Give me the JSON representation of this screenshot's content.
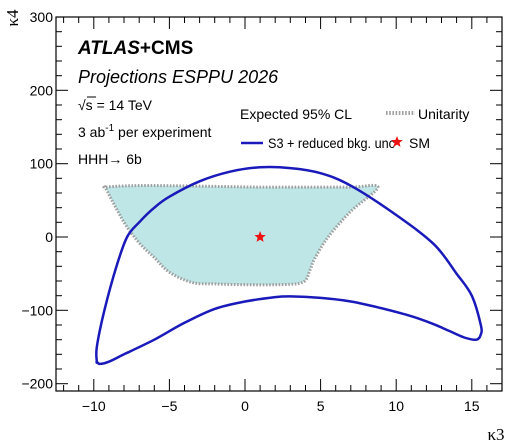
{
  "chart_data": {
    "type": "contour",
    "xlabel": "κ3",
    "ylabel": "κ4",
    "xlim": [
      -12.5,
      17
    ],
    "ylim": [
      -210,
      300
    ],
    "x_ticks": [
      -10,
      -5,
      0,
      5,
      10,
      15
    ],
    "y_ticks": [
      -200,
      -100,
      0,
      100,
      200,
      300
    ],
    "annotations": {
      "experiment_bold_italic": "ATLAS",
      "experiment_bold": "+CMS",
      "subtitle": "Projections ESPPU 2026",
      "energy_sqrt": "√s",
      "energy_value": "= 14 TeV",
      "lumi_value": "3 ab",
      "lumi_exp": "-1",
      "lumi_suffix": " per experiment",
      "channel_label": "HHH",
      "channel_arrow": "→",
      "channel_final": " 6b",
      "cl_label": "Expected 95% CL"
    },
    "legend": {
      "placement": "top-right",
      "entries": [
        {
          "label": "Unitarity",
          "style": "dotted-fill",
          "color": "#a0a0a0"
        },
        {
          "label": "S3 + reduced bkg. unc",
          "style": "line",
          "color": "#1a1aba"
        },
        {
          "label": "SM",
          "style": "star-marker",
          "color": "#ee1111"
        }
      ]
    },
    "series": [
      {
        "name": "Unitarity",
        "kind": "filled_region",
        "fill_color": "#bfe6e6",
        "edge_color": "#a0a0a0",
        "points": [
          [
            -9.2,
            68
          ],
          [
            -7.5,
            70
          ],
          [
            -5,
            70
          ],
          [
            -2,
            69
          ],
          [
            1,
            68
          ],
          [
            4,
            68
          ],
          [
            7,
            68
          ],
          [
            8.8,
            68
          ],
          [
            7,
            35
          ],
          [
            5.5,
            0
          ],
          [
            4.6,
            -30
          ],
          [
            4.3,
            -45
          ],
          [
            3.8,
            -62
          ],
          [
            2,
            -65
          ],
          [
            0,
            -65
          ],
          [
            -2,
            -64
          ],
          [
            -3.5,
            -62
          ],
          [
            -5,
            -48
          ],
          [
            -6,
            -28
          ],
          [
            -7,
            -8
          ],
          [
            -8,
            20
          ],
          [
            -9.2,
            66
          ]
        ]
      },
      {
        "name": "S3 + reduced bkg. unc",
        "kind": "contour",
        "color": "#1a1aba",
        "points": [
          [
            -9.8,
            -170
          ],
          [
            -9.6,
            -173
          ],
          [
            -9,
            -170
          ],
          [
            -8,
            -160
          ],
          [
            -6,
            -140
          ],
          [
            -4,
            -117
          ],
          [
            -2,
            -98
          ],
          [
            0,
            -88
          ],
          [
            2,
            -82
          ],
          [
            3,
            -81
          ],
          [
            5,
            -83
          ],
          [
            7,
            -88
          ],
          [
            9,
            -97
          ],
          [
            11,
            -108
          ],
          [
            12.5,
            -119
          ],
          [
            13.5,
            -128
          ],
          [
            14.5,
            -137
          ],
          [
            15.3,
            -140
          ],
          [
            15.6,
            -133
          ],
          [
            15.6,
            -120
          ],
          [
            15,
            -80
          ],
          [
            14,
            -50
          ],
          [
            12.5,
            -10
          ],
          [
            10,
            30
          ],
          [
            7,
            70
          ],
          [
            5,
            87
          ],
          [
            3,
            94
          ],
          [
            1,
            95
          ],
          [
            -1,
            89
          ],
          [
            -3,
            76
          ],
          [
            -5,
            55
          ],
          [
            -6,
            40
          ],
          [
            -7,
            20
          ],
          [
            -7.8,
            0
          ],
          [
            -8.5,
            -40
          ],
          [
            -9.3,
            -100
          ],
          [
            -9.8,
            -150
          ],
          [
            -9.8,
            -170
          ]
        ]
      },
      {
        "name": "SM",
        "kind": "marker",
        "marker": "star",
        "color": "#ee1111",
        "points": [
          [
            1,
            0
          ]
        ]
      }
    ]
  }
}
